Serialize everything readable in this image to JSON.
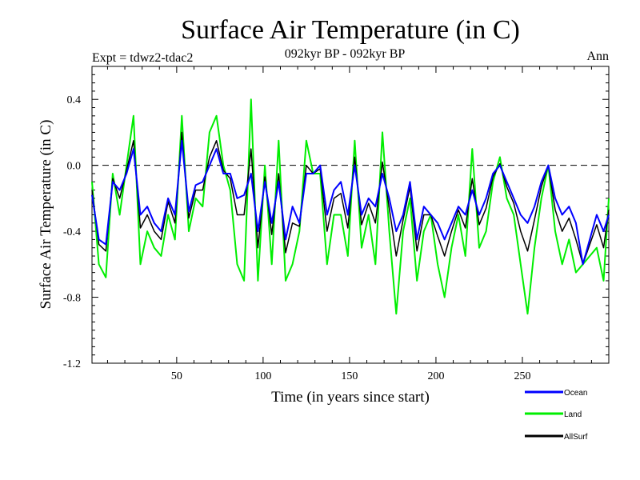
{
  "chart_data": {
    "type": "line",
    "title": "Surface Air Temperature (in C)",
    "subtitle": "092kyr BP - 092kyr BP",
    "experiment_label": "Expt = tdwz2-tdac2",
    "period_label": "Ann",
    "xlabel": "Time (in years since start)",
    "ylabel": "Surface Air Temperature (in C)",
    "xlim": [
      1,
      300
    ],
    "ylim": [
      -1.2,
      0.6
    ],
    "xticks": [
      50,
      100,
      150,
      200,
      250
    ],
    "yticks": [
      0.4,
      0.0,
      -0.4,
      -0.8,
      -1.2
    ],
    "ytick_labels": [
      "0.4",
      "0.0",
      "-0.4",
      "-0.8",
      "-1.2"
    ],
    "reference_line": 0.0,
    "x_start": 1,
    "x_step": 4,
    "series": [
      {
        "name": "Ocean",
        "color": "#0000ff",
        "values": [
          -0.18,
          -0.45,
          -0.48,
          -0.1,
          -0.15,
          -0.05,
          0.1,
          -0.3,
          -0.25,
          -0.35,
          -0.4,
          -0.2,
          -0.3,
          0.15,
          -0.28,
          -0.12,
          -0.1,
          0.0,
          0.1,
          -0.05,
          -0.05,
          -0.2,
          -0.18,
          -0.05,
          -0.4,
          -0.1,
          -0.35,
          -0.1,
          -0.45,
          -0.25,
          -0.35,
          -0.05,
          -0.05,
          0.0,
          -0.3,
          -0.15,
          -0.1,
          -0.3,
          0.0,
          -0.3,
          -0.2,
          -0.25,
          -0.05,
          -0.2,
          -0.4,
          -0.3,
          -0.1,
          -0.45,
          -0.25,
          -0.3,
          -0.35,
          -0.45,
          -0.35,
          -0.25,
          -0.3,
          -0.15,
          -0.3,
          -0.2,
          -0.05,
          0.0,
          -0.1,
          -0.2,
          -0.3,
          -0.35,
          -0.25,
          -0.1,
          0.0,
          -0.2,
          -0.3,
          -0.25,
          -0.35,
          -0.6,
          -0.45,
          -0.3,
          -0.4,
          -0.3
        ],
        "values_note": "sampled every 4 years from year 1 to year 301"
      },
      {
        "name": "Land",
        "color": "#00ee00",
        "values": [
          -0.1,
          -0.6,
          -0.68,
          -0.05,
          -0.3,
          0.0,
          0.3,
          -0.6,
          -0.4,
          -0.5,
          -0.55,
          -0.3,
          -0.45,
          0.3,
          -0.4,
          -0.2,
          -0.25,
          0.2,
          0.3,
          0.0,
          -0.15,
          -0.6,
          -0.7,
          0.4,
          -0.7,
          0.0,
          -0.6,
          0.15,
          -0.7,
          -0.6,
          -0.4,
          0.15,
          -0.05,
          -0.05,
          -0.6,
          -0.3,
          -0.3,
          -0.55,
          0.15,
          -0.5,
          -0.3,
          -0.6,
          0.2,
          -0.4,
          -0.9,
          -0.4,
          -0.2,
          -0.7,
          -0.4,
          -0.3,
          -0.6,
          -0.8,
          -0.5,
          -0.3,
          -0.55,
          0.1,
          -0.5,
          -0.4,
          -0.1,
          0.05,
          -0.2,
          -0.3,
          -0.6,
          -0.9,
          -0.5,
          -0.2,
          0.0,
          -0.4,
          -0.6,
          -0.45,
          -0.65,
          -0.6,
          -0.55,
          -0.5,
          -0.7,
          -0.2
        ],
        "values_note": "sampled every 4 years from year 1 to year 301"
      },
      {
        "name": "AllSurf",
        "color": "#000000",
        "values": [
          -0.15,
          -0.48,
          -0.52,
          -0.08,
          -0.2,
          -0.03,
          0.15,
          -0.38,
          -0.3,
          -0.4,
          -0.45,
          -0.22,
          -0.35,
          0.2,
          -0.32,
          -0.15,
          -0.15,
          0.05,
          0.15,
          -0.03,
          -0.08,
          -0.3,
          -0.3,
          0.1,
          -0.5,
          -0.07,
          -0.42,
          -0.05,
          -0.53,
          -0.35,
          -0.37,
          0.0,
          -0.05,
          -0.02,
          -0.4,
          -0.2,
          -0.17,
          -0.38,
          0.05,
          -0.36,
          -0.23,
          -0.35,
          0.02,
          -0.26,
          -0.55,
          -0.33,
          -0.13,
          -0.52,
          -0.3,
          -0.3,
          -0.43,
          -0.55,
          -0.4,
          -0.27,
          -0.38,
          -0.08,
          -0.36,
          -0.26,
          -0.07,
          0.01,
          -0.13,
          -0.23,
          -0.4,
          -0.52,
          -0.33,
          -0.13,
          0.0,
          -0.27,
          -0.4,
          -0.32,
          -0.45,
          -0.6,
          -0.48,
          -0.36,
          -0.5,
          -0.27
        ],
        "values_note": "sampled every 4 years from year 1 to year 301"
      }
    ],
    "legend": [
      {
        "label": "Ocean",
        "color": "#0000ff"
      },
      {
        "label": "Land",
        "color": "#00ee00"
      },
      {
        "label": "AllSurf",
        "color": "#000000"
      }
    ],
    "legend_position": "bottom-right"
  }
}
